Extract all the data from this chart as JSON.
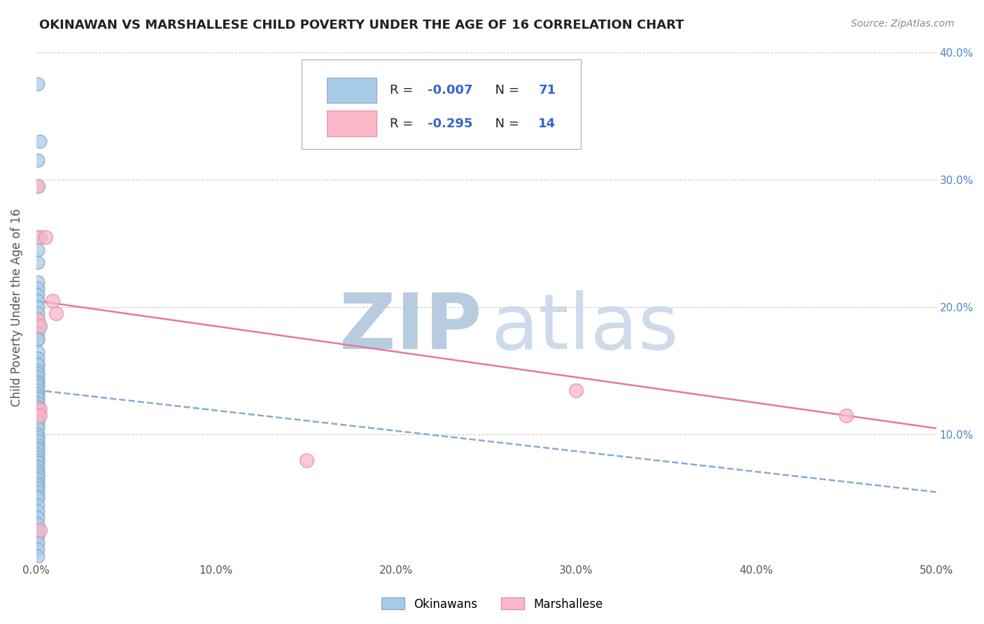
{
  "title": "OKINAWAN VS MARSHALLESE CHILD POVERTY UNDER THE AGE OF 16 CORRELATION CHART",
  "source": "Source: ZipAtlas.com",
  "ylabel": "Child Poverty Under the Age of 16",
  "xlim": [
    0.0,
    0.5
  ],
  "ylim": [
    0.0,
    0.4
  ],
  "xticks": [
    0.0,
    0.1,
    0.2,
    0.3,
    0.4,
    0.5
  ],
  "yticks": [
    0.0,
    0.1,
    0.2,
    0.3,
    0.4
  ],
  "xtick_labels": [
    "0.0%",
    "10.0%",
    "20.0%",
    "30.0%",
    "40.0%",
    "50.0%"
  ],
  "right_ytick_labels": [
    "",
    "10.0%",
    "20.0%",
    "30.0%",
    "40.0%"
  ],
  "okinawan_color": "#a8cce8",
  "marshallese_color": "#f8b8c8",
  "okinawan_edge": "#88aacc",
  "marshallese_edge": "#e890a8",
  "trend_okinawan_color": "#88aad0",
  "trend_marshallese_color": "#e87898",
  "background_color": "#ffffff",
  "grid_color": "#cccccc",
  "watermark_zip_color": "#b8cce0",
  "watermark_atlas_color": "#c8d8e8",
  "okinawan_x": [
    0.001,
    0.002,
    0.001,
    0.001,
    0.001,
    0.001,
    0.001,
    0.001,
    0.001,
    0.001,
    0.001,
    0.001,
    0.001,
    0.001,
    0.002,
    0.001,
    0.001,
    0.001,
    0.001,
    0.001,
    0.001,
    0.001,
    0.001,
    0.001,
    0.001,
    0.001,
    0.001,
    0.001,
    0.001,
    0.001,
    0.001,
    0.001,
    0.001,
    0.001,
    0.001,
    0.001,
    0.001,
    0.001,
    0.001,
    0.001,
    0.001,
    0.001,
    0.001,
    0.001,
    0.001,
    0.001,
    0.001,
    0.001,
    0.001,
    0.001,
    0.001,
    0.001,
    0.001,
    0.001,
    0.001,
    0.001,
    0.001,
    0.001,
    0.001,
    0.001,
    0.001,
    0.001,
    0.001,
    0.001,
    0.001,
    0.001,
    0.001,
    0.001,
    0.001,
    0.001,
    0.001
  ],
  "okinawan_y": [
    0.375,
    0.33,
    0.315,
    0.295,
    0.255,
    0.245,
    0.235,
    0.22,
    0.215,
    0.21,
    0.205,
    0.2,
    0.195,
    0.19,
    0.185,
    0.18,
    0.175,
    0.175,
    0.165,
    0.16,
    0.155,
    0.155,
    0.15,
    0.148,
    0.145,
    0.142,
    0.14,
    0.138,
    0.135,
    0.132,
    0.13,
    0.128,
    0.125,
    0.122,
    0.12,
    0.118,
    0.115,
    0.112,
    0.11,
    0.108,
    0.105,
    0.1,
    0.098,
    0.095,
    0.092,
    0.09,
    0.088,
    0.085,
    0.082,
    0.08,
    0.078,
    0.075,
    0.072,
    0.07,
    0.068,
    0.065,
    0.062,
    0.06,
    0.058,
    0.055,
    0.052,
    0.05,
    0.045,
    0.04,
    0.035,
    0.03,
    0.025,
    0.02,
    0.015,
    0.01,
    0.005
  ],
  "marshallese_x": [
    0.001,
    0.002,
    0.005,
    0.009,
    0.011,
    0.001,
    0.002,
    0.001,
    0.002,
    0.002,
    0.3,
    0.45,
    0.15,
    0.002
  ],
  "marshallese_y": [
    0.295,
    0.255,
    0.255,
    0.205,
    0.195,
    0.19,
    0.185,
    0.12,
    0.12,
    0.115,
    0.135,
    0.115,
    0.08,
    0.025
  ],
  "R_okinawan": -0.007,
  "N_okinawan": 71,
  "R_marshallese": -0.295,
  "N_marshallese": 14,
  "trend_okinawan_start_x": 0.0,
  "trend_okinawan_start_y": 0.135,
  "trend_okinawan_end_x": 0.5,
  "trend_okinawan_end_y": 0.055,
  "trend_marshallese_start_x": 0.0,
  "trend_marshallese_start_y": 0.205,
  "trend_marshallese_end_x": 0.5,
  "trend_marshallese_end_y": 0.105,
  "legend_label_r_okinawan": "R = ",
  "legend_val_r_okinawan": "-0.007",
  "legend_label_n_okinawan": "  N = ",
  "legend_val_n_okinawan": "71",
  "legend_label_r_marshallese": "R = ",
  "legend_val_r_marshallese": "-0.295",
  "legend_label_n_marshallese": "  N = ",
  "legend_val_n_marshallese": "14",
  "text_color_black": "#222222",
  "text_color_blue": "#3366cc",
  "text_color_axis": "#555555",
  "text_color_right_axis": "#4488cc"
}
